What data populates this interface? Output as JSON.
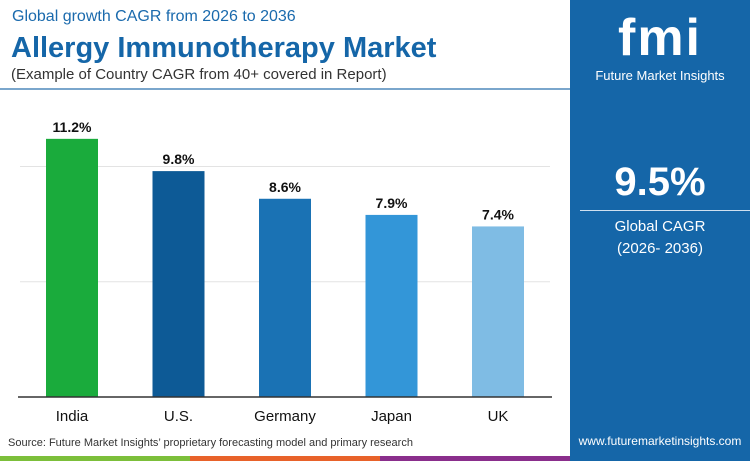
{
  "header": {
    "subtitle": "Global growth CAGR from 2026 to 2036",
    "title": "Allergy Immunotherapy Market",
    "note": "(Example of Country CAGR from 40+ covered in Report)"
  },
  "panel": {
    "logo_text": "fmi",
    "brand": "Future Market Insights",
    "cagr_value": "9.5%",
    "cagr_label": "Global CAGR",
    "cagr_period": "(2026- 2036)",
    "website": "www.futuremarketinsights.com"
  },
  "source": "Source: Future Market Insights’ proprietary forecasting model and primary research",
  "colors": {
    "panel": "#1566a8",
    "stripes": [
      "#7cbf3a",
      "#e8622a",
      "#8a2e8c"
    ]
  },
  "chart_data": {
    "type": "bar",
    "categories": [
      "India",
      "U.S.",
      "Germany",
      "Japan",
      "UK"
    ],
    "values": [
      11.2,
      9.8,
      8.6,
      7.9,
      7.4
    ],
    "labels": [
      "11.2%",
      "9.8%",
      "8.6%",
      "7.9%",
      "7.4%"
    ],
    "colors": [
      "#1aab3c",
      "#0d5a96",
      "#1a72b4",
      "#3396d8",
      "#7fbce4"
    ],
    "ylim": [
      0,
      12
    ],
    "grid": true,
    "gridlines": [
      5,
      10
    ]
  }
}
